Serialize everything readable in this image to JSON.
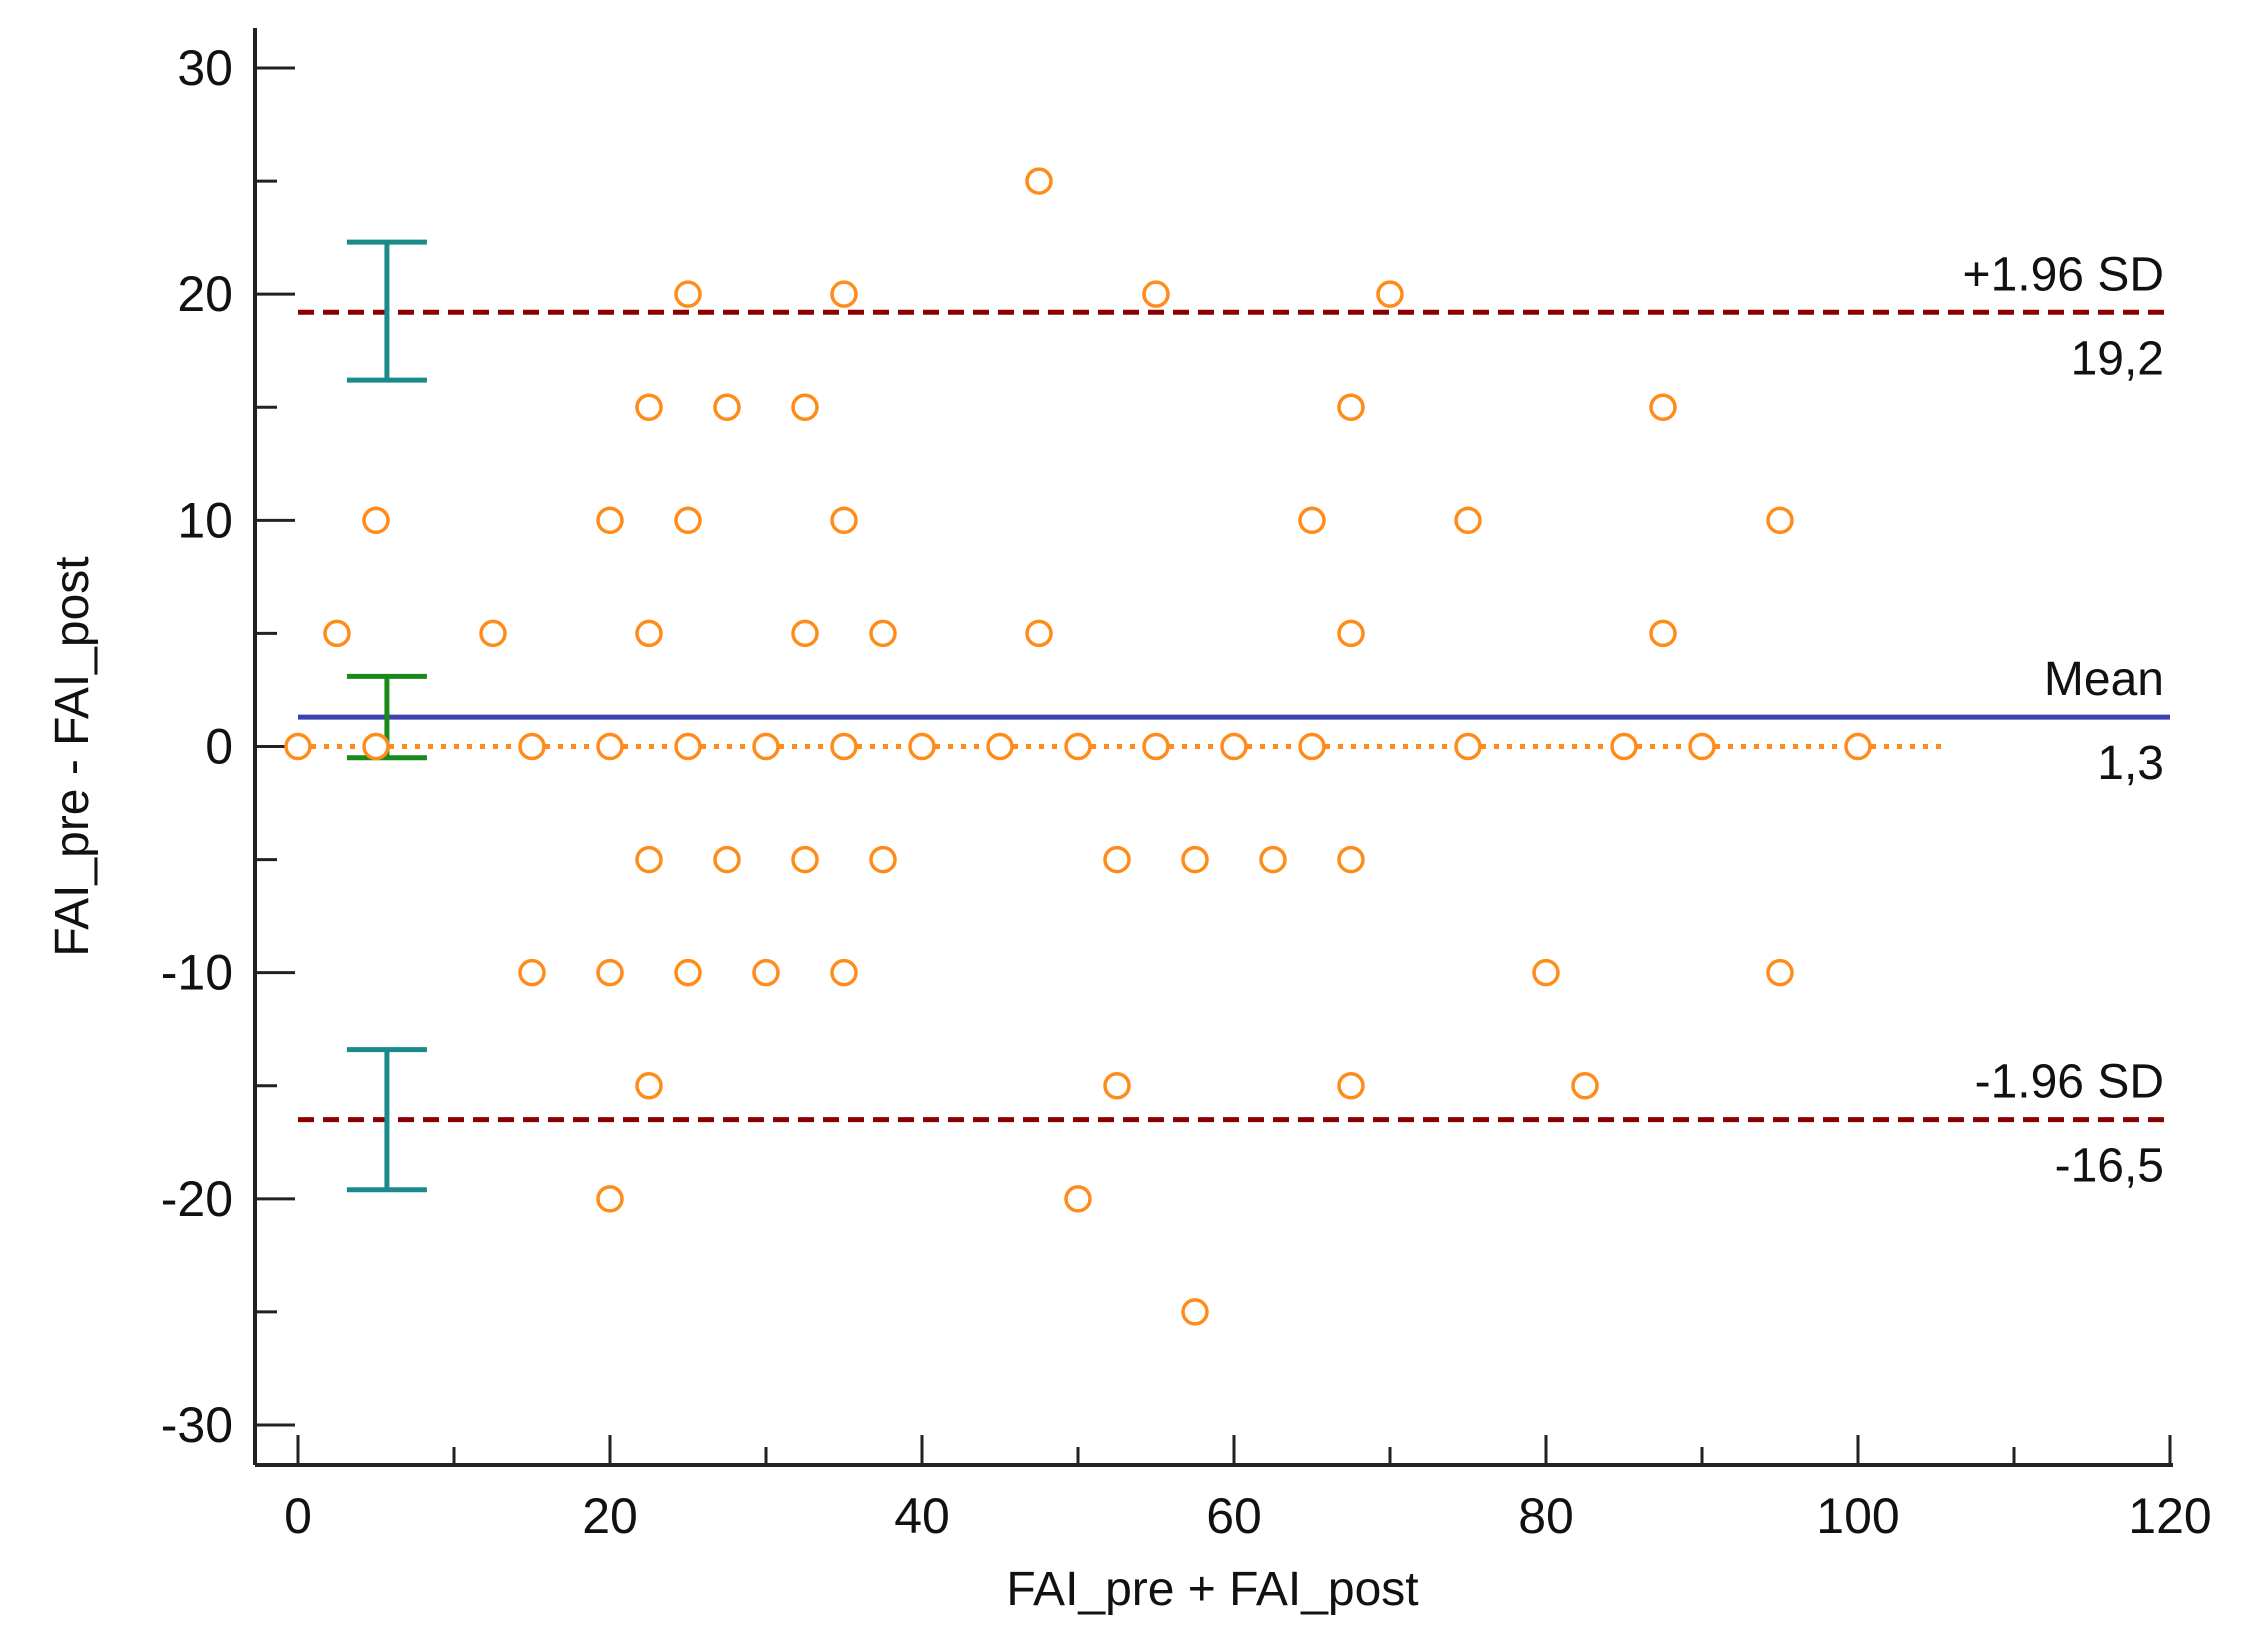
{
  "chart_data": {
    "type": "scatter",
    "title": "",
    "xlabel": "FAI_pre + FAI_post",
    "ylabel": "FAI_pre - FAI_post",
    "xlim": [
      0,
      120
    ],
    "ylim": [
      -30,
      30
    ],
    "x_ticks": [
      "0",
      "20",
      "40",
      "60",
      "80",
      "100",
      "120"
    ],
    "y_ticks": [
      "-30",
      "-20",
      "-10",
      "0",
      "10",
      "20",
      "30"
    ],
    "x_tick_values": [
      0,
      20,
      40,
      60,
      80,
      100,
      120
    ],
    "y_tick_values": [
      -30,
      -20,
      -10,
      0,
      10,
      20,
      30
    ],
    "x_minor_step": 10,
    "y_minor_step": 5,
    "grid": false,
    "points": [
      [
        47.5,
        25
      ],
      [
        25,
        20
      ],
      [
        35,
        20
      ],
      [
        55,
        20
      ],
      [
        70,
        20
      ],
      [
        22.5,
        15
      ],
      [
        27.5,
        15
      ],
      [
        32.5,
        15
      ],
      [
        67.5,
        15
      ],
      [
        87.5,
        15
      ],
      [
        5,
        10
      ],
      [
        20,
        10
      ],
      [
        25,
        10
      ],
      [
        35,
        10
      ],
      [
        65,
        10
      ],
      [
        75,
        10
      ],
      [
        95,
        10
      ],
      [
        2.5,
        5
      ],
      [
        12.5,
        5
      ],
      [
        22.5,
        5
      ],
      [
        32.5,
        5
      ],
      [
        37.5,
        5
      ],
      [
        47.5,
        5
      ],
      [
        67.5,
        5
      ],
      [
        87.5,
        5
      ],
      [
        0,
        0
      ],
      [
        5,
        0
      ],
      [
        15,
        0
      ],
      [
        20,
        0
      ],
      [
        25,
        0
      ],
      [
        30,
        0
      ],
      [
        35,
        0
      ],
      [
        40,
        0
      ],
      [
        45,
        0
      ],
      [
        50,
        0
      ],
      [
        55,
        0
      ],
      [
        60,
        0
      ],
      [
        65,
        0
      ],
      [
        75,
        0
      ],
      [
        85,
        0
      ],
      [
        90,
        0
      ],
      [
        100,
        0
      ],
      [
        22.5,
        -5
      ],
      [
        27.5,
        -5
      ],
      [
        32.5,
        -5
      ],
      [
        37.5,
        -5
      ],
      [
        52.5,
        -5
      ],
      [
        57.5,
        -5
      ],
      [
        62.5,
        -5
      ],
      [
        67.5,
        -5
      ],
      [
        15,
        -10
      ],
      [
        20,
        -10
      ],
      [
        25,
        -10
      ],
      [
        30,
        -10
      ],
      [
        35,
        -10
      ],
      [
        80,
        -10
      ],
      [
        95,
        -10
      ],
      [
        22.5,
        -15
      ],
      [
        52.5,
        -15
      ],
      [
        67.5,
        -15
      ],
      [
        82.5,
        -15
      ],
      [
        20,
        -20
      ],
      [
        50,
        -20
      ],
      [
        57.5,
        -25
      ]
    ],
    "reference_lines": {
      "upper": {
        "label": "+1.96 SD",
        "value": 19.2,
        "value_text": "19,2",
        "color": "#8b0000"
      },
      "mean": {
        "label": "Mean",
        "value": 1.3,
        "value_text": "1,3",
        "color": "#4040b0"
      },
      "lower": {
        "label": "-1.96 SD",
        "value": -16.5,
        "value_text": "-16,5",
        "color": "#8b0000"
      },
      "zero": {
        "value": 0,
        "x_range": [
          0,
          105.5
        ],
        "color": "#ff8c1a"
      }
    },
    "confidence_intervals": [
      {
        "name": "upper-loa-ci",
        "x": 5.7,
        "low": 16.2,
        "high": 22.3,
        "color": "#1a8a8a"
      },
      {
        "name": "mean-ci",
        "x": 5.7,
        "low": -0.5,
        "high": 3.1,
        "color": "#1a8a1a"
      },
      {
        "name": "lower-loa-ci",
        "x": 5.7,
        "low": -19.6,
        "high": -13.4,
        "color": "#1a8a8a"
      }
    ],
    "marker_color": "#ff8c1a"
  }
}
